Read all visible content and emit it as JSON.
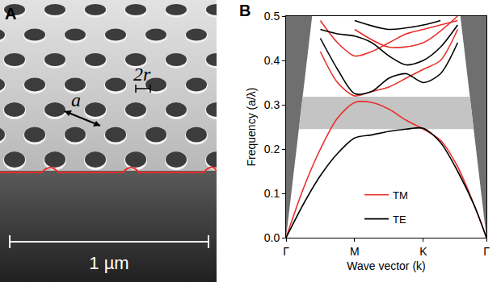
{
  "image_panel": {
    "letter": "A",
    "lattice_label": "a",
    "radius_label": "2r",
    "scale_bar": "1 µm"
  },
  "chart_data": {
    "type": "line",
    "letter": "B",
    "x_label": "Wave vector (k)",
    "y_label": "Frequency (a/λ)",
    "xlim": [
      0,
      2.92
    ],
    "xticks": [
      {
        "value": 0,
        "label": "Γ"
      },
      {
        "value": 1,
        "label": "M"
      },
      {
        "value": 2,
        "label": "K"
      },
      {
        "value": 2.92,
        "label": "Γ"
      }
    ],
    "ylim": [
      0,
      0.5
    ],
    "yticks": [
      {
        "value": 0,
        "label": "0.0"
      },
      0.1,
      0.2,
      0.3,
      0.4,
      0.5
    ],
    "light_line_x": [
      0.38,
      2.54
    ],
    "band_gap": [
      0.245,
      0.318
    ],
    "legend": "bottom",
    "series": [
      {
        "name": "TM",
        "color": "#e8302a",
        "x": [
          0,
          0.25,
          0.5,
          0.75,
          1,
          1.25,
          1.5,
          1.75,
          2,
          2.25,
          2.5,
          2.75,
          2.92
        ],
        "values": [
          0,
          0.11,
          0.2,
          0.27,
          0.305,
          0.305,
          0.29,
          0.265,
          0.245,
          0.22,
          0.16,
          0.07,
          0
        ]
      },
      {
        "name": "TE",
        "color": "#000000",
        "x": [
          0,
          0.25,
          0.5,
          0.75,
          1,
          1.25,
          1.5,
          1.75,
          2,
          2.25,
          2.5,
          2.75,
          2.92
        ],
        "values": [
          0,
          0.075,
          0.14,
          0.19,
          0.225,
          0.232,
          0.24,
          0.245,
          0.247,
          0.215,
          0.15,
          0.07,
          0
        ]
      },
      {
        "name": "TM",
        "color": "#e8302a",
        "x": [
          0.5,
          0.75,
          1,
          1.25,
          1.5,
          1.75,
          2,
          2.25,
          2.5
        ],
        "values": [
          0.42,
          0.35,
          0.32,
          0.33,
          0.34,
          0.36,
          0.38,
          0.4,
          0.47
        ]
      },
      {
        "name": "TM",
        "color": "#e8302a",
        "x": [
          0.5,
          0.75,
          1,
          1.25,
          1.5,
          1.75,
          2,
          2.25,
          2.5
        ],
        "values": [
          0.49,
          0.44,
          0.41,
          0.42,
          0.44,
          0.46,
          0.47,
          0.48,
          0.49
        ]
      },
      {
        "name": "TM",
        "color": "#e8302a",
        "x": [
          1,
          1.5,
          2,
          2.5
        ],
        "values": [
          0.47,
          0.43,
          0.44,
          0.5
        ]
      },
      {
        "name": "TE",
        "color": "#000000",
        "x": [
          0.5,
          0.75,
          1,
          1.25,
          1.5,
          1.75,
          2,
          2.25,
          2.5
        ],
        "values": [
          0.45,
          0.38,
          0.325,
          0.33,
          0.36,
          0.37,
          0.35,
          0.37,
          0.44
        ]
      },
      {
        "name": "TE",
        "color": "#000000",
        "x": [
          0.5,
          0.75,
          1,
          1.25,
          1.5,
          1.75,
          2,
          2.25,
          2.5
        ],
        "values": [
          0.47,
          0.46,
          0.455,
          0.44,
          0.41,
          0.39,
          0.4,
          0.43,
          0.48
        ]
      },
      {
        "name": "TE",
        "color": "#000000",
        "x": [
          1,
          1.5,
          2,
          2.25
        ],
        "values": [
          0.49,
          0.47,
          0.48,
          0.49
        ]
      }
    ]
  }
}
